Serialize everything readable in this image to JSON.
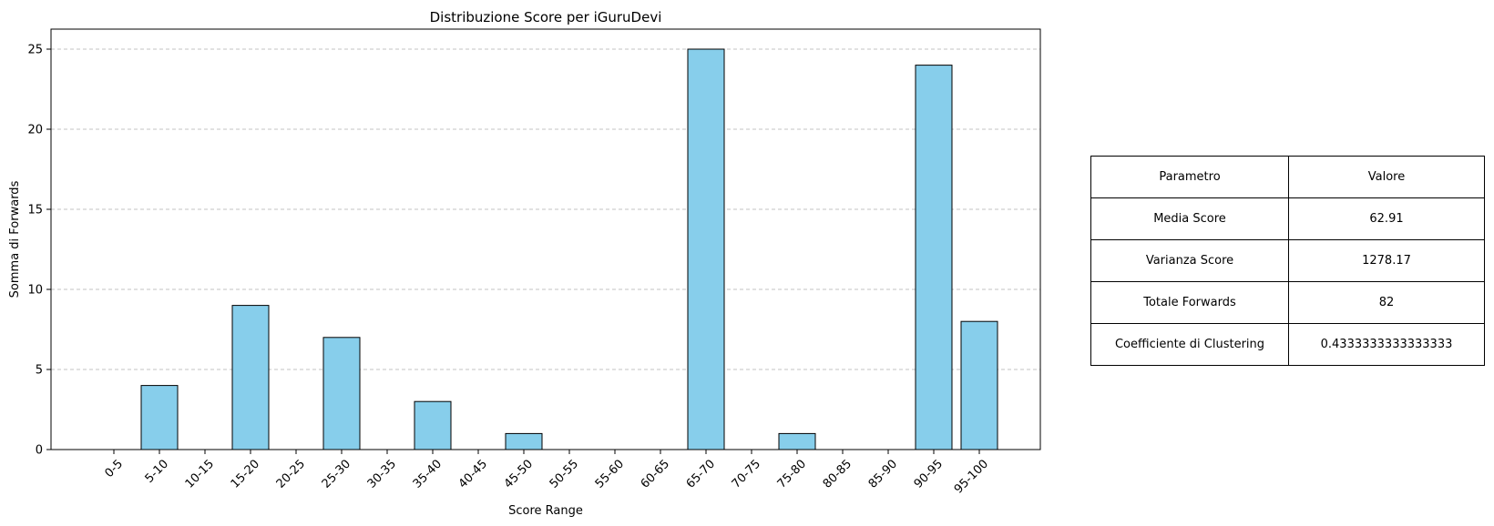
{
  "chart_data": {
    "type": "bar",
    "title": "Distribuzione Score per iGuruDevi",
    "xlabel": "Score Range",
    "ylabel": "Somma di Forwards",
    "categories": [
      "0-5",
      "5-10",
      "10-15",
      "15-20",
      "20-25",
      "25-30",
      "30-35",
      "35-40",
      "40-45",
      "45-50",
      "50-55",
      "55-60",
      "60-65",
      "65-70",
      "70-75",
      "75-80",
      "80-85",
      "85-90",
      "90-95",
      "95-100"
    ],
    "values": [
      0,
      4,
      0,
      9,
      0,
      7,
      0,
      3,
      0,
      1,
      0,
      0,
      0,
      25,
      0,
      1,
      0,
      0,
      24,
      8
    ],
    "ylim": [
      0,
      26.25
    ],
    "yticks": [
      0,
      5,
      10,
      15,
      20,
      25
    ],
    "grid": "y dashed",
    "bar_color": "#87CEEB",
    "edge_color": "#000000"
  },
  "table": {
    "header": [
      "Parametro",
      "Valore"
    ],
    "rows": [
      [
        "Media Score",
        "62.91"
      ],
      [
        "Varianza Score",
        "1278.17"
      ],
      [
        "Totale Forwards",
        "82"
      ],
      [
        "Coefficiente di Clustering",
        "0.4333333333333333"
      ]
    ]
  }
}
